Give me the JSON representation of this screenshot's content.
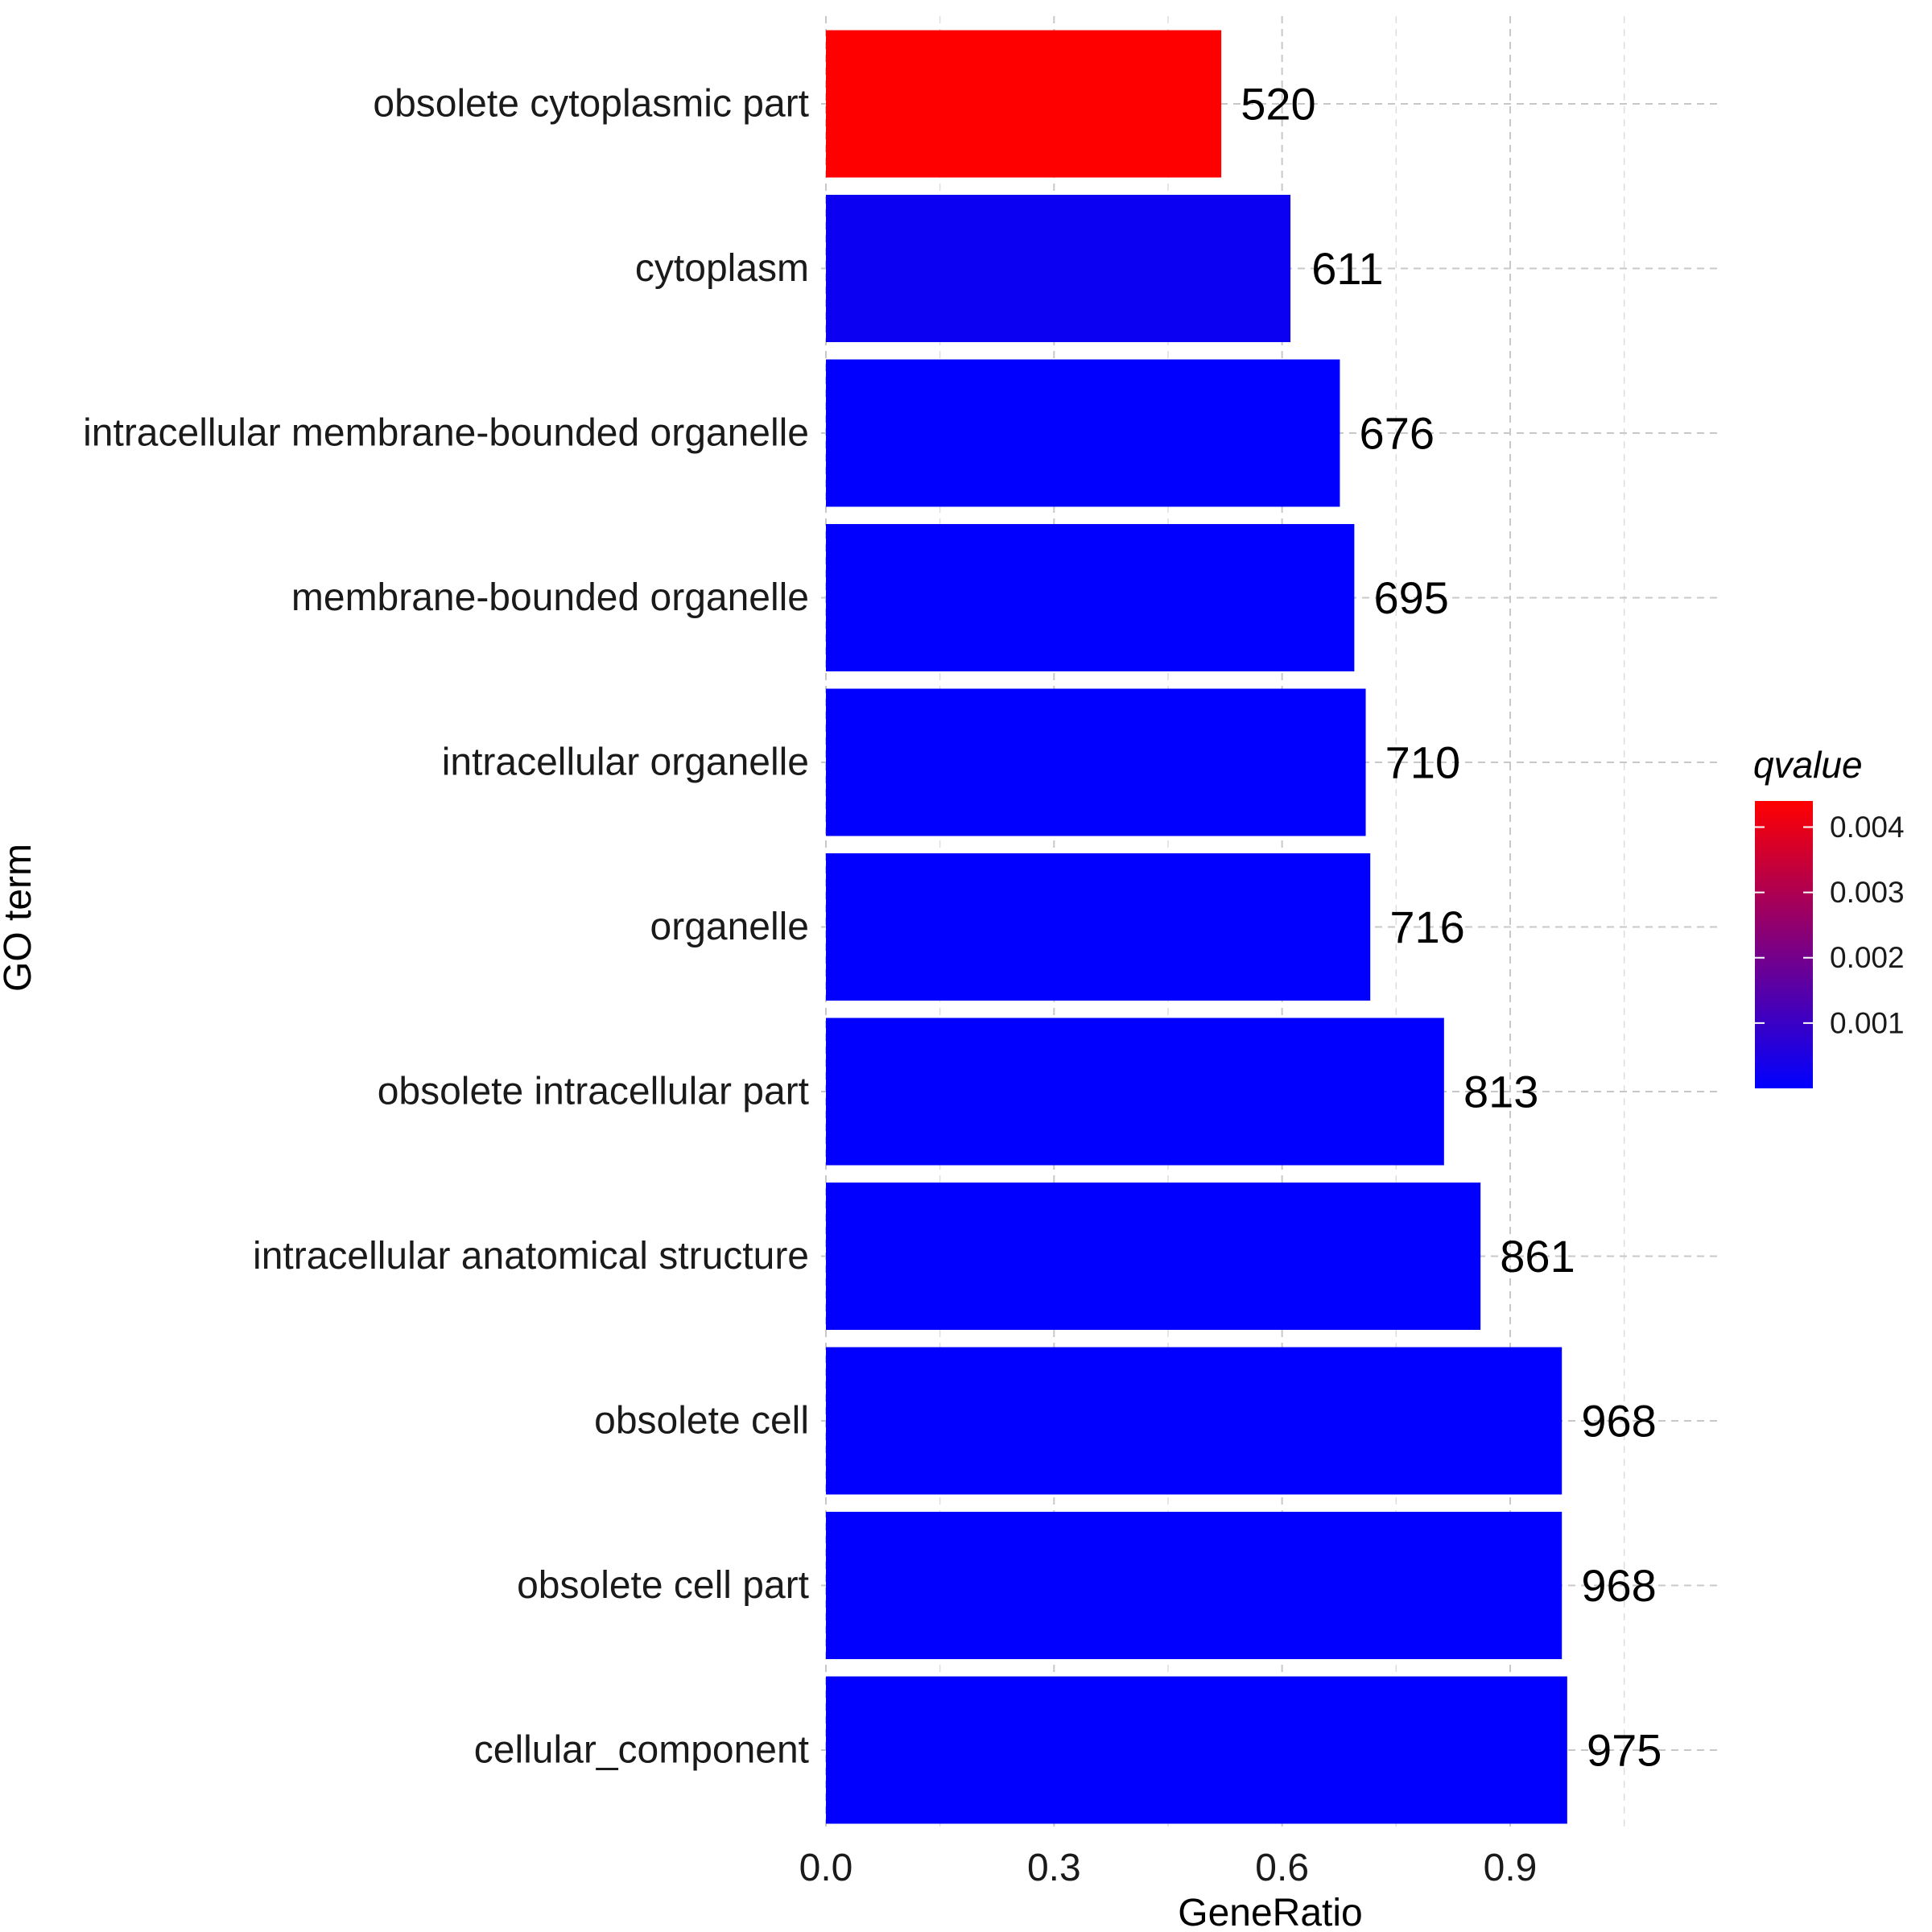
{
  "chart_data": {
    "type": "bar",
    "orientation": "horizontal",
    "title": "",
    "xlabel": "GeneRatio",
    "ylabel": "GO term",
    "xlim": [
      0,
      1.05
    ],
    "x_ticks": [
      0.0,
      0.3,
      0.6,
      0.9
    ],
    "x_tick_labels": [
      "0.0",
      "0.3",
      "0.6",
      "0.9"
    ],
    "grid": true,
    "categories": [
      "obsolete cytoplasmic part",
      "cytoplasm",
      "intracellular membrane-bounded organelle",
      "membrane-bounded organelle",
      "intracellular organelle",
      "organelle",
      "obsolete intracellular part",
      "intracellular anatomical structure",
      "obsolete cell",
      "obsolete cell part",
      "cellular_component"
    ],
    "values": [
      0.52,
      0.611,
      0.676,
      0.695,
      0.71,
      0.716,
      0.813,
      0.861,
      0.968,
      0.968,
      0.975
    ],
    "data_labels": [
      "520",
      "611",
      "676",
      "695",
      "710",
      "716",
      "813",
      "861",
      "968",
      "968",
      "975"
    ],
    "qvalue": [
      0.0044,
      0.0002,
      1e-05,
      1e-05,
      1e-05,
      1e-05,
      1e-05,
      1e-05,
      1e-05,
      1e-05,
      1e-05
    ],
    "legend": {
      "title": "qvalue",
      "placement": "right",
      "range": [
        0,
        0.0044
      ],
      "ticks": [
        0.004,
        0.003,
        0.002,
        0.001
      ],
      "tick_labels": [
        "0.004",
        "0.003",
        "0.002",
        "0.001"
      ],
      "color_low": "#0000ff",
      "color_high": "#ff0000"
    }
  }
}
